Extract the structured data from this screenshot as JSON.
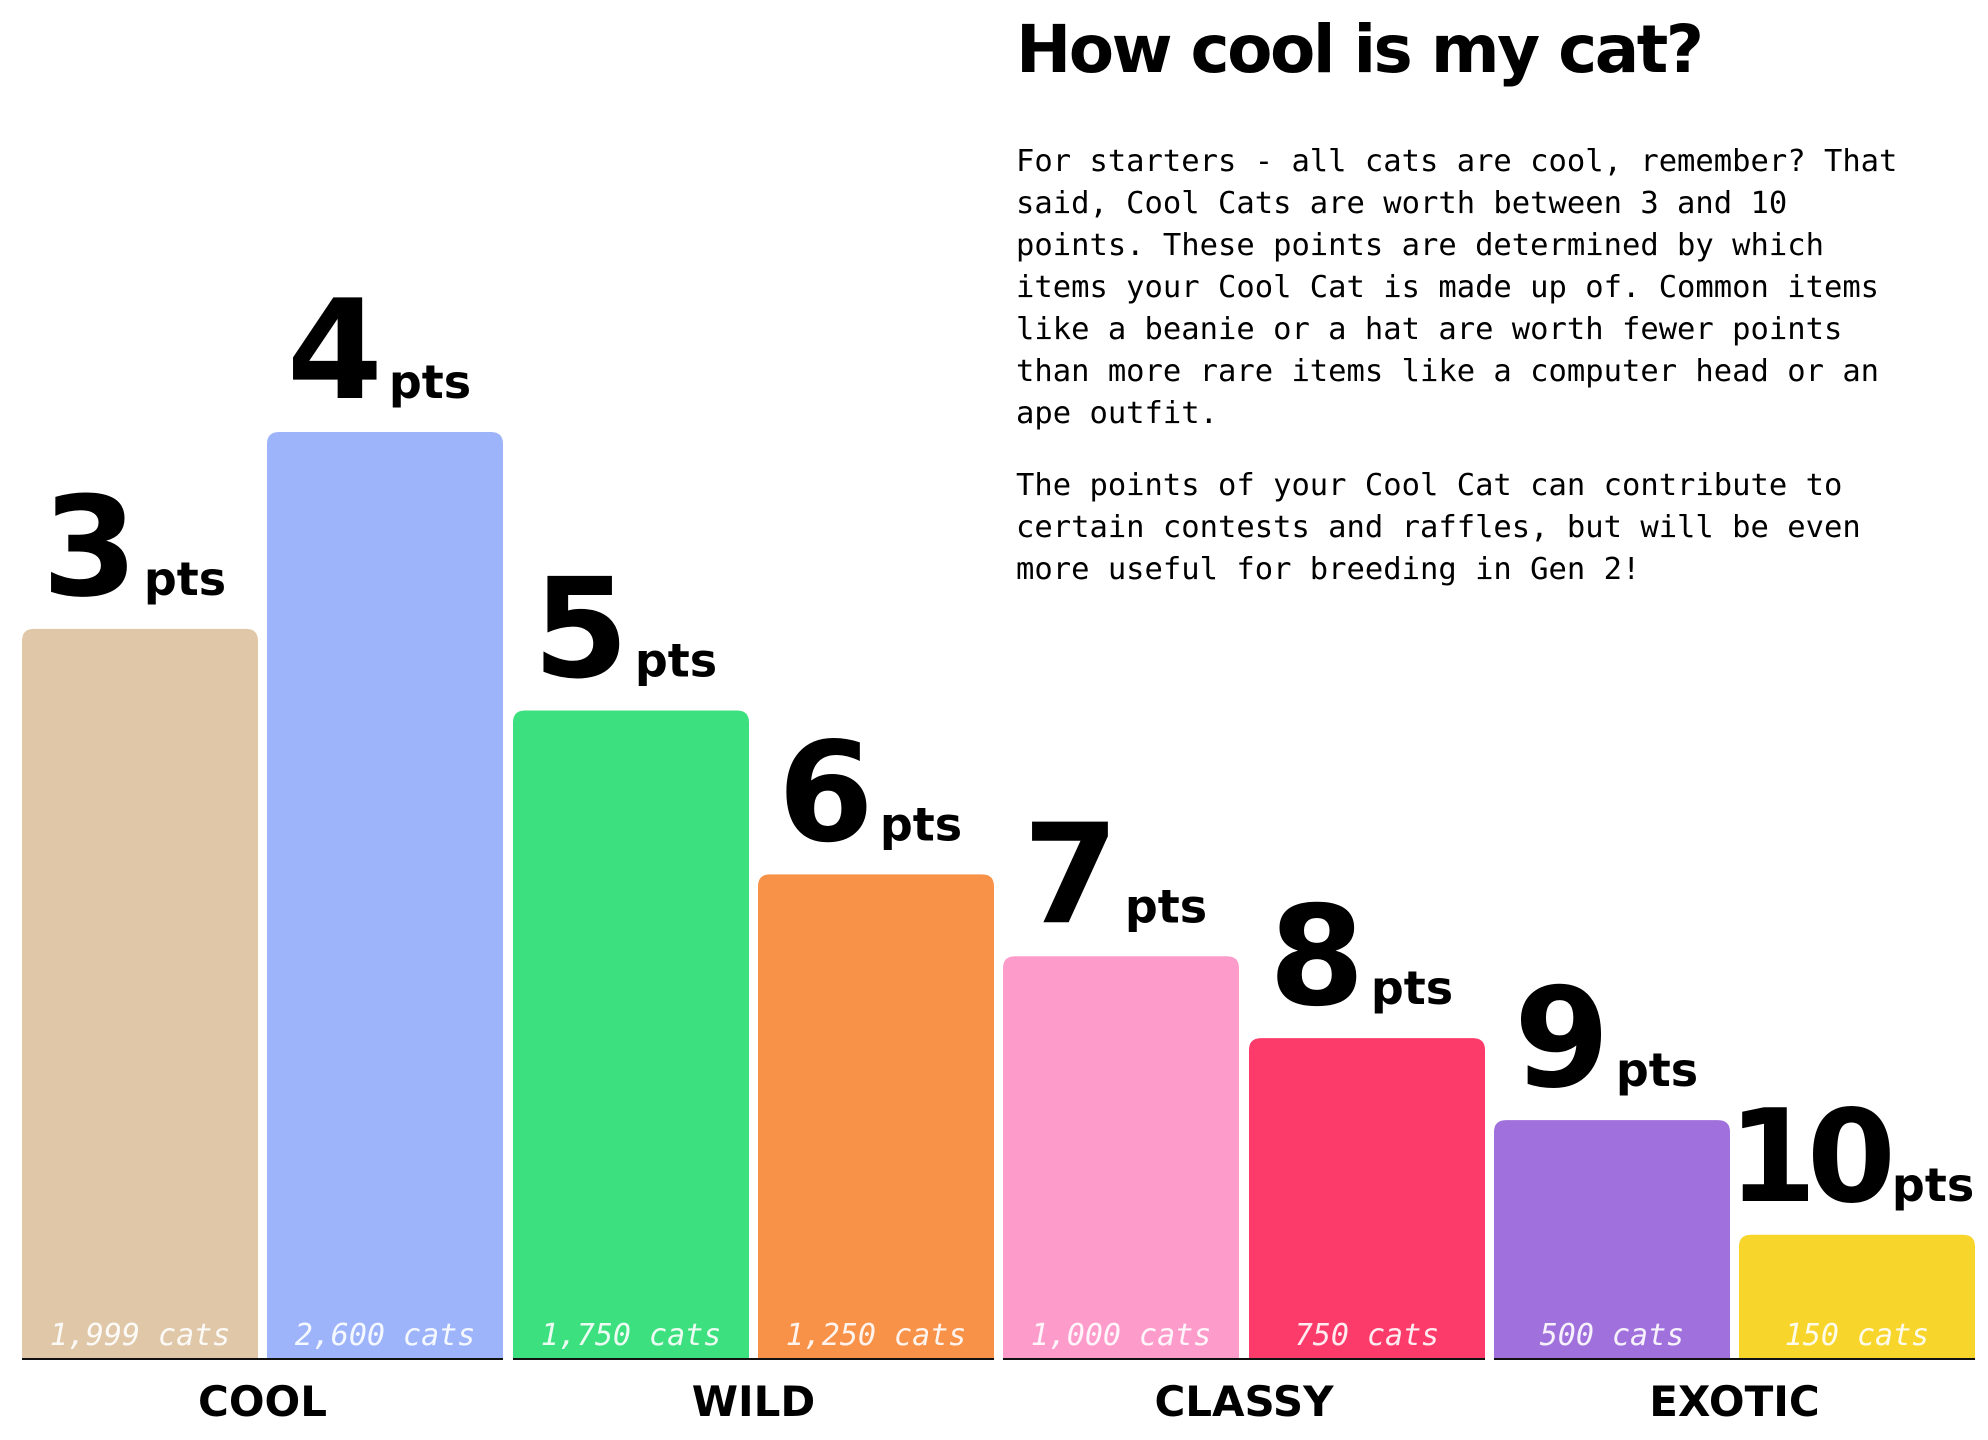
{
  "header": {
    "title": "How cool is my cat?",
    "paragraphs": [
      "For starters - all cats are cool, remember? That\nsaid, Cool Cats are worth between 3 and 10\npoints. These points are determined by which\nitems your Cool Cat is made up of. Common items\nlike a beanie or a hat are worth fewer points\nthan more rare items like a computer head or an\nape outfit.",
      "The points of your Cool Cat can contribute to\ncertain contests and raffles, but will be even\nmore useful for breeding in Gen 2!"
    ]
  },
  "chart_data": {
    "type": "bar",
    "unit_label": "pts",
    "count_suffix": "cats",
    "groups": [
      {
        "name": "COOL",
        "items": [
          0,
          1
        ]
      },
      {
        "name": "WILD",
        "items": [
          2,
          3
        ]
      },
      {
        "name": "CLASSY",
        "items": [
          4,
          5
        ]
      },
      {
        "name": "EXOTIC",
        "items": [
          6,
          7
        ]
      }
    ],
    "bars": [
      {
        "points": 3,
        "cats": 1999,
        "cats_label": "1,999",
        "color": "#dfc7a8"
      },
      {
        "points": 4,
        "cats": 2600,
        "cats_label": "2,600",
        "color": "#9db4fb"
      },
      {
        "points": 5,
        "cats": 1750,
        "cats_label": "1,750",
        "color": "#3ce07e"
      },
      {
        "points": 6,
        "cats": 1250,
        "cats_label": "1,250",
        "color": "#f99249"
      },
      {
        "points": 7,
        "cats": 1000,
        "cats_label": "1,000",
        "color": "#fd9ccb"
      },
      {
        "points": 8,
        "cats": 750,
        "cats_label": "750",
        "color": "#fd3b6b"
      },
      {
        "points": 9,
        "cats": 500,
        "cats_label": "500",
        "color": "#a071dc"
      },
      {
        "points": 10,
        "cats": 150,
        "cats_label": "150",
        "color": "#f8d52b"
      }
    ]
  }
}
